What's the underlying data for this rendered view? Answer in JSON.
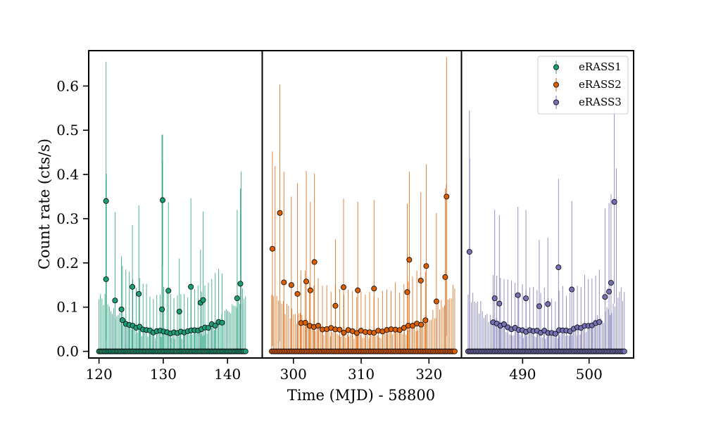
{
  "chart_data": {
    "type": "scatter",
    "subtype": "errorbar-broken-axis",
    "xlabel": "Time (MJD) - 58800",
    "ylabel": "Count rate (cts/s)",
    "ylim": [
      -0.015,
      0.68
    ],
    "yticks": [
      0.0,
      0.1,
      0.2,
      0.3,
      0.4,
      0.5,
      0.6
    ],
    "ytick_labels": [
      "0.0",
      "0.1",
      "0.2",
      "0.3",
      "0.4",
      "0.5",
      "0.6"
    ],
    "legend_position": "top-right",
    "panels": [
      {
        "name": "eRASS1",
        "xlim": [
          118.4,
          145.4
        ],
        "xticks": [
          120,
          130,
          140
        ],
        "xtick_labels": [
          "120",
          "130",
          "140"
        ]
      },
      {
        "name": "eRASS2",
        "xlim": [
          295.4,
          324.8
        ],
        "xticks": [
          300,
          310,
          320
        ],
        "xtick_labels": [
          "300",
          "310",
          "320"
        ]
      },
      {
        "name": "eRASS3",
        "xlim": [
          480.8,
          506.7
        ],
        "xticks": [
          490,
          500
        ],
        "xtick_labels": [
          "490",
          "500"
        ]
      }
    ],
    "series": [
      {
        "name": "eRASS1",
        "color": "#1b9e77",
        "panel": 0,
        "x_start": 120.0,
        "x_end": 142.8,
        "n": 100,
        "peak_x": [
          121.1,
          129.8,
          142.0
        ],
        "outliers": [
          {
            "x": 121.1,
            "y": 0.34,
            "err": 0.315
          },
          {
            "x": 121.1,
            "y": 0.163,
            "err": 0.225
          },
          {
            "x": 122.5,
            "y": 0.115,
            "err": 0.2
          },
          {
            "x": 123.5,
            "y": 0.095,
            "err": 0.12
          },
          {
            "x": 125.2,
            "y": 0.146,
            "err": 0.14
          },
          {
            "x": 126.2,
            "y": 0.13,
            "err": 0.2
          },
          {
            "x": 129.9,
            "y": 0.342,
            "err": 0.148
          },
          {
            "x": 129.8,
            "y": 0.095,
            "err": 0.395
          },
          {
            "x": 130.8,
            "y": 0.137,
            "err": 0.2
          },
          {
            "x": 132.5,
            "y": 0.09,
            "err": 0.12
          },
          {
            "x": 134.3,
            "y": 0.146,
            "err": 0.2
          },
          {
            "x": 135.8,
            "y": 0.11,
            "err": 0.12
          },
          {
            "x": 136.2,
            "y": 0.116,
            "err": 0.2
          },
          {
            "x": 141.5,
            "y": 0.12,
            "err": 0.2
          },
          {
            "x": 142.0,
            "y": 0.153,
            "err": 0.215
          }
        ]
      },
      {
        "name": "eRASS2",
        "color": "#d95f02",
        "panel": 1,
        "x_start": 296.8,
        "x_end": 323.8,
        "n": 110,
        "peak_x": [
          297.4,
          322.6
        ],
        "outliers": [
          {
            "x": 296.9,
            "y": 0.232,
            "err": 0.22
          },
          {
            "x": 298.0,
            "y": 0.313,
            "err": 0.29
          },
          {
            "x": 298.6,
            "y": 0.156,
            "err": 0.25
          },
          {
            "x": 299.7,
            "y": 0.15,
            "err": 0.2
          },
          {
            "x": 300.6,
            "y": 0.13,
            "err": 0.25
          },
          {
            "x": 301.9,
            "y": 0.158,
            "err": 0.25
          },
          {
            "x": 302.5,
            "y": 0.138,
            "err": 0.2
          },
          {
            "x": 303.1,
            "y": 0.202,
            "err": 0.2
          },
          {
            "x": 306.2,
            "y": 0.103,
            "err": 0.15
          },
          {
            "x": 307.4,
            "y": 0.145,
            "err": 0.2
          },
          {
            "x": 309.5,
            "y": 0.138,
            "err": 0.2
          },
          {
            "x": 311.9,
            "y": 0.142,
            "err": 0.2
          },
          {
            "x": 316.8,
            "y": 0.134,
            "err": 0.2
          },
          {
            "x": 317.1,
            "y": 0.207,
            "err": 0.2
          },
          {
            "x": 318.8,
            "y": 0.16,
            "err": 0.2
          },
          {
            "x": 319.6,
            "y": 0.193,
            "err": 0.23
          },
          {
            "x": 321.1,
            "y": 0.113,
            "err": 0.2
          },
          {
            "x": 322.6,
            "y": 0.35,
            "err": 0.315
          },
          {
            "x": 322.4,
            "y": 0.168,
            "err": 0.2
          }
        ]
      },
      {
        "name": "eRASS3",
        "color": "#7570b3",
        "panel": 2,
        "x_start": 481.8,
        "x_end": 505.3,
        "n": 100,
        "peak_x": [
          482.0,
          504.2
        ],
        "outliers": [
          {
            "x": 482.0,
            "y": 0.225,
            "err": 0.32
          },
          {
            "x": 485.8,
            "y": 0.12,
            "err": 0.2
          },
          {
            "x": 486.5,
            "y": 0.108,
            "err": 0.2
          },
          {
            "x": 489.3,
            "y": 0.127,
            "err": 0.2
          },
          {
            "x": 490.5,
            "y": 0.12,
            "err": 0.2
          },
          {
            "x": 492.5,
            "y": 0.102,
            "err": 0.15
          },
          {
            "x": 493.8,
            "y": 0.107,
            "err": 0.15
          },
          {
            "x": 495.4,
            "y": 0.19,
            "err": 0.2
          },
          {
            "x": 497.4,
            "y": 0.14,
            "err": 0.2
          },
          {
            "x": 502.4,
            "y": 0.123,
            "err": 0.2
          },
          {
            "x": 503.0,
            "y": 0.135,
            "err": 0.2
          },
          {
            "x": 503.3,
            "y": 0.155,
            "err": 0.2
          },
          {
            "x": 503.8,
            "y": 0.338,
            "err": 0.23
          }
        ]
      }
    ]
  }
}
